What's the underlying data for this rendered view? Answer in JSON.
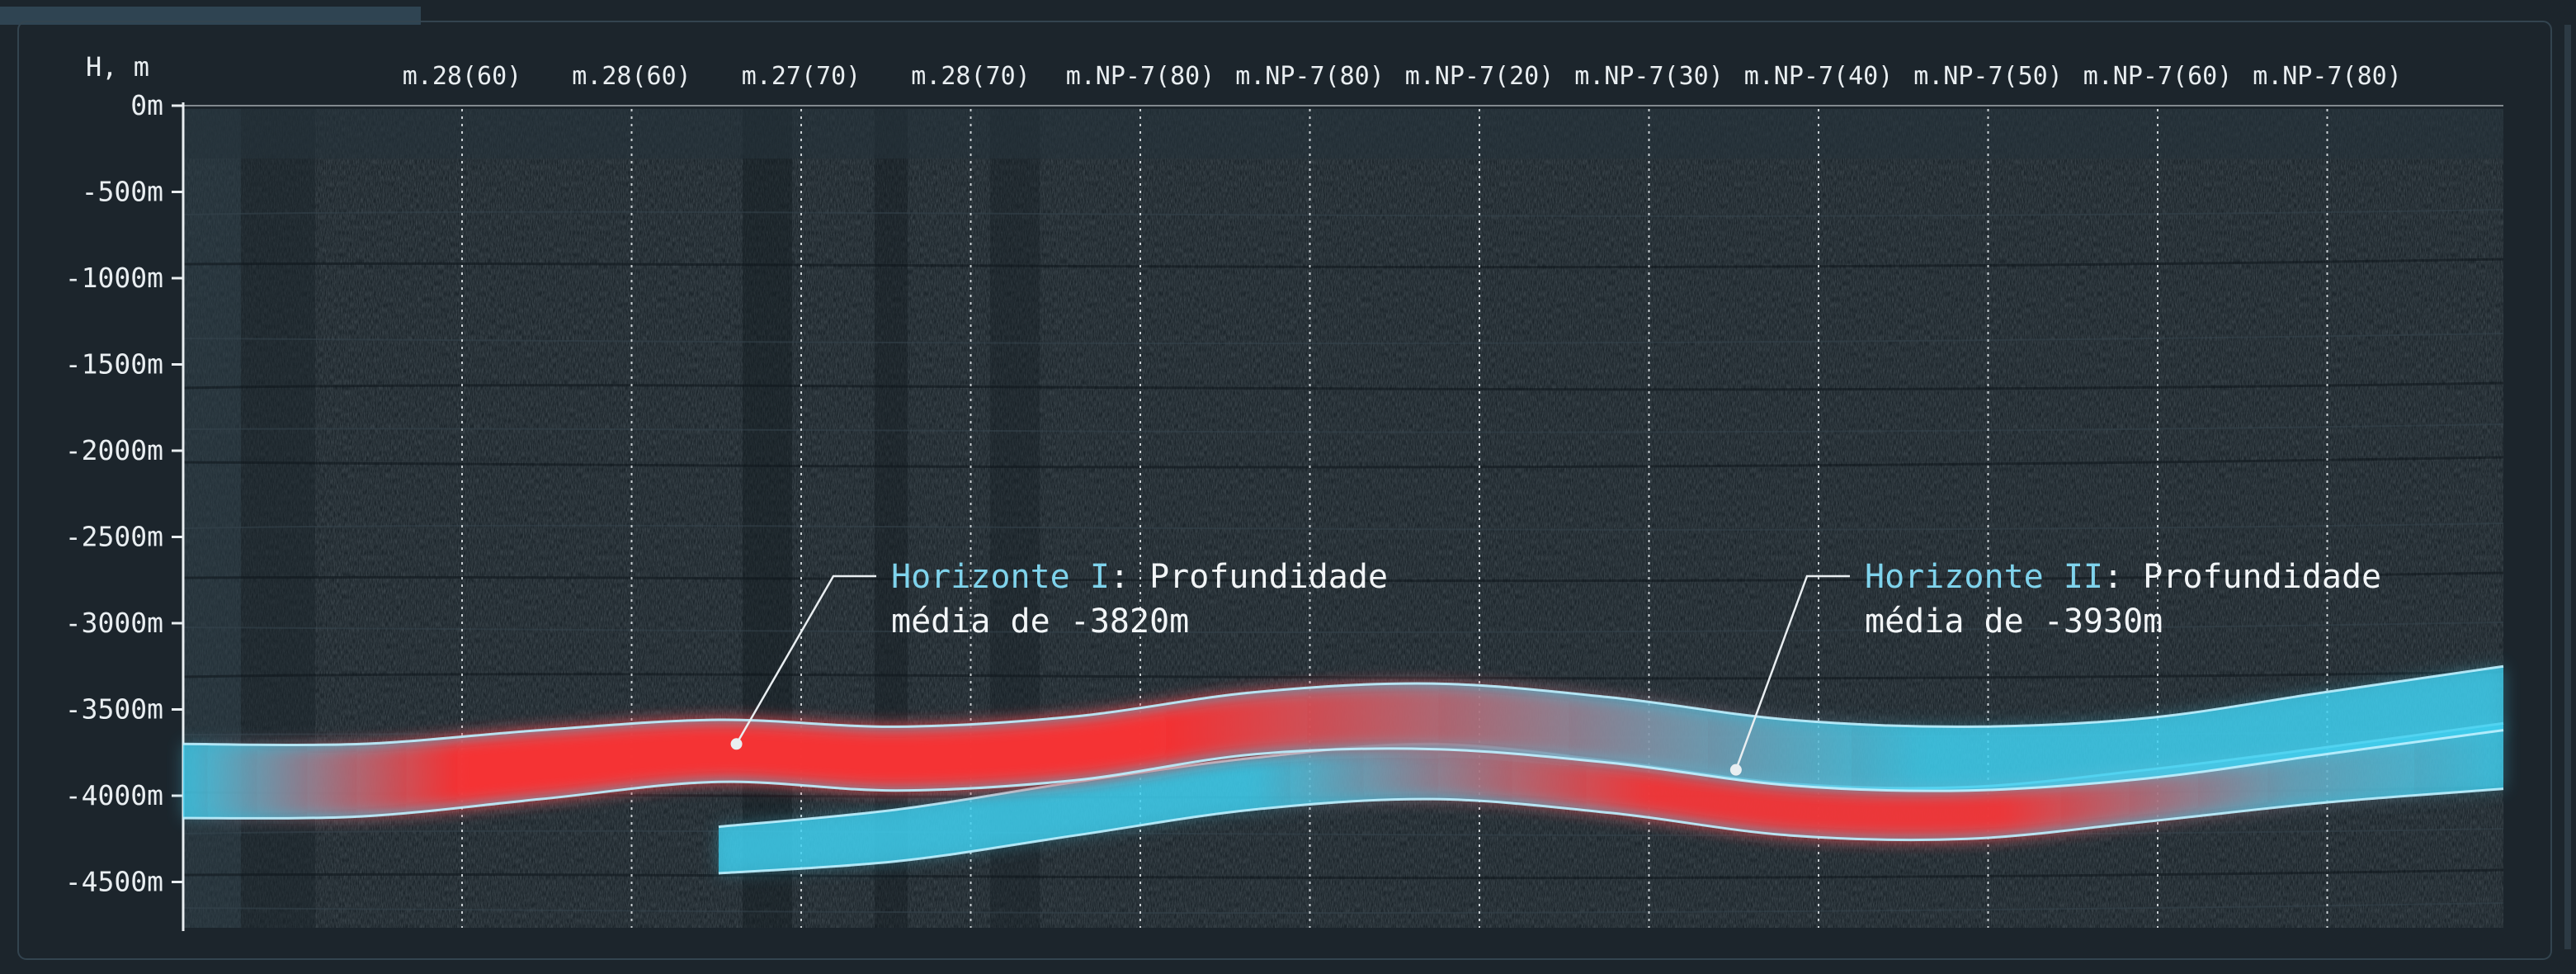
{
  "chart_data": {
    "type": "line",
    "title": "",
    "ylabel": "H, m",
    "xlabel": "",
    "ylim": [
      -4500,
      0
    ],
    "y_ticks": [
      0,
      -500,
      -1000,
      -1500,
      -2000,
      -2500,
      -3000,
      -3500,
      -4000,
      -4500
    ],
    "y_tick_labels": [
      "0m",
      "-500m",
      "-1000m",
      "-1500m",
      "-2000m",
      "-2500m",
      "-3000m",
      "-3500m",
      "-4000m",
      "-4500m"
    ],
    "wells": [
      "m.28(60)",
      "m.28(60)",
      "m.27(70)",
      "m.28(70)",
      "m.NP-7(80)",
      "m.NP-7(80)",
      "m.NP-7(20)",
      "m.NP-7(30)",
      "m.NP-7(40)",
      "m.NP-7(50)",
      "m.NP-7(60)",
      "m.NP-7(80)"
    ],
    "grid": "vertical-dotted-at-wells",
    "series": [
      {
        "name": "Horizonte I",
        "color": "#3fd0f0",
        "highlight_color": "#ff2a2a",
        "x": [
          0,
          1,
          2,
          3,
          4,
          5,
          6,
          7,
          8,
          9,
          10,
          11,
          12,
          13
        ],
        "top": [
          -3700,
          -3700,
          -3620,
          -3560,
          -3600,
          -3540,
          -3400,
          -3350,
          -3430,
          -3560,
          -3600,
          -3550,
          -3400,
          -3250
        ],
        "bottom": [
          -4130,
          -4120,
          -4020,
          -3920,
          -3970,
          -3910,
          -3760,
          -3730,
          -3810,
          -3940,
          -3970,
          -3900,
          -3760,
          -3620
        ]
      },
      {
        "name": "Horizonte II",
        "color": "#3fd0f0",
        "highlight_color": "#ff2a2a",
        "x": [
          3,
          4,
          5,
          6,
          7,
          8,
          9,
          10,
          11,
          12,
          13
        ],
        "top": [
          -4180,
          -4080,
          -3920,
          -3780,
          -3700,
          -3800,
          -3930,
          -3950,
          -3850,
          -3720,
          -3580
        ],
        "bottom": [
          -4450,
          -4380,
          -4230,
          -4080,
          -4020,
          -4100,
          -4230,
          -4250,
          -4150,
          -4040,
          -3960
        ]
      }
    ],
    "annotations": [
      {
        "name": "Horizonte I",
        "text1": ": Profundidade",
        "text2": "média de -3820m",
        "point_x": 3.1,
        "point_depth": -3700
      },
      {
        "name": "Horizonte II",
        "text1": ": Profundidade",
        "text2": "média de -3930m",
        "point_x": 8.7,
        "point_depth": -3850
      }
    ],
    "colors": {
      "panel_bg": "#1c252c",
      "seismic_dark": "#161e24",
      "seismic_light": "#2a3742",
      "accent_bar": "#2f4452",
      "axis": "#e9eef1"
    }
  }
}
